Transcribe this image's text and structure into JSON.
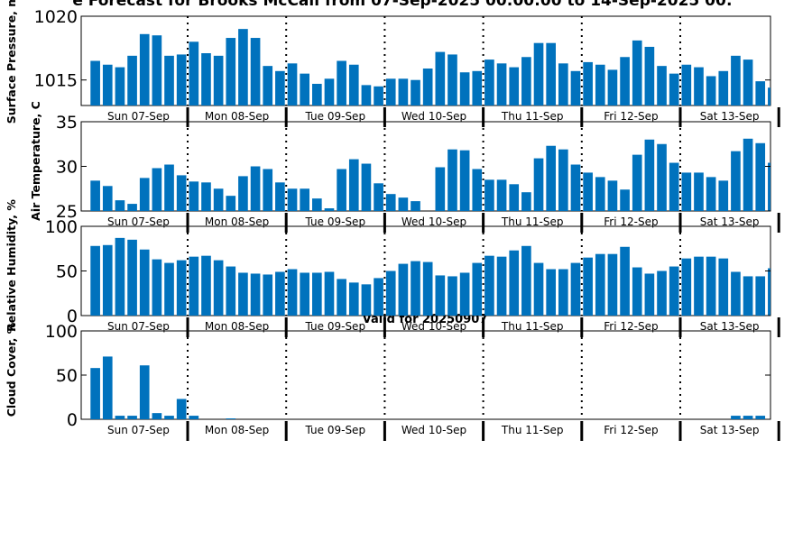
{
  "chart_data": {
    "title": "e Forecast for Brooks McCall from 07-Sep-2025 00:00:00 to 14-Sep-2025 00:",
    "subtitle": "Valid for 20250907",
    "type": "bar",
    "bar_color": "#0072bd",
    "day_labels": [
      "Sun 07-Sep",
      "Mon 08-Sep",
      "Tue 09-Sep",
      "Wed 10-Sep",
      "Thu 11-Sep",
      "Fri 12-Sep",
      "Sat 13-Sep"
    ],
    "panels": [
      {
        "ylabel": "Surface Pressure, mb",
        "ylim": [
          1013,
          1020
        ],
        "yticks": [
          "1015",
          "1020"
        ],
        "ytick_values": [
          1015,
          1020
        ],
        "values": [
          1016.5,
          1016.2,
          1016.0,
          1016.9,
          1018.6,
          1018.5,
          1016.9,
          1017.0,
          1018.0,
          1017.1,
          1016.9,
          1018.3,
          1019.0,
          1018.3,
          1016.1,
          1015.7,
          1016.3,
          1015.5,
          1014.7,
          1015.1,
          1016.5,
          1016.2,
          1014.6,
          1014.5,
          1015.1,
          1015.1,
          1015.0,
          1015.9,
          1017.2,
          1017.0,
          1015.6,
          1015.7,
          1016.6,
          1016.3,
          1016.0,
          1016.8,
          1017.9,
          1017.9,
          1016.3,
          1015.7,
          1016.4,
          1016.2,
          1015.8,
          1016.8,
          1018.1,
          1017.6,
          1016.1,
          1015.5,
          1016.2,
          1016.0,
          1015.3,
          1015.7,
          1016.9,
          1016.6,
          1014.9,
          1014.4
        ]
      },
      {
        "ylabel": "Air Temperature, C",
        "ylim": [
          25,
          35
        ],
        "yticks": [
          "25",
          "30",
          "35"
        ],
        "ytick_values": [
          25,
          30,
          35
        ],
        "values": [
          28.4,
          27.8,
          26.2,
          25.8,
          28.7,
          29.8,
          30.2,
          29.0,
          28.3,
          28.2,
          27.5,
          26.7,
          28.9,
          30.0,
          29.7,
          28.2,
          27.5,
          27.5,
          26.4,
          25.3,
          29.7,
          30.8,
          30.3,
          28.1,
          26.9,
          26.5,
          26.1,
          25.0,
          29.9,
          31.9,
          31.8,
          29.7,
          28.5,
          28.5,
          28.0,
          27.1,
          30.9,
          32.3,
          31.9,
          30.2,
          29.3,
          28.8,
          28.4,
          27.4,
          31.3,
          33.0,
          32.5,
          30.4,
          29.3,
          29.3,
          28.8,
          28.4,
          31.7,
          33.1,
          32.6,
          30.4
        ]
      },
      {
        "ylabel": "Relative Humidity, %",
        "ylim": [
          0,
          100
        ],
        "yticks": [
          "0",
          "50",
          "100"
        ],
        "ytick_values": [
          0,
          50,
          100
        ],
        "values": [
          78,
          79,
          87,
          85,
          74,
          63,
          59,
          62,
          66,
          67,
          62,
          55,
          48,
          47,
          46,
          49,
          52,
          48,
          48,
          49,
          41,
          37,
          35,
          42,
          50,
          58,
          61,
          60,
          45,
          44,
          48,
          59,
          67,
          66,
          73,
          78,
          59,
          52,
          52,
          59,
          65,
          69,
          69,
          77,
          54,
          47,
          50,
          55,
          64,
          66,
          66,
          64,
          49,
          44,
          44,
          53
        ]
      },
      {
        "ylabel": "Cloud Cover, %",
        "ylim": [
          0,
          100
        ],
        "yticks": [
          "0",
          "50",
          "100"
        ],
        "ytick_values": [
          0,
          50,
          100
        ],
        "values": [
          58,
          71,
          4,
          4,
          61,
          7,
          4,
          23,
          4,
          0,
          0,
          1,
          0,
          0,
          0,
          0,
          0,
          0,
          0,
          0,
          0,
          0,
          0,
          0,
          0,
          0,
          0,
          0,
          0,
          0,
          0,
          0,
          0,
          0,
          0,
          0,
          0,
          0,
          0,
          0,
          0,
          0,
          0,
          0,
          0,
          0,
          0,
          0,
          0,
          0,
          0,
          0,
          4,
          4,
          4,
          0
        ]
      }
    ]
  }
}
